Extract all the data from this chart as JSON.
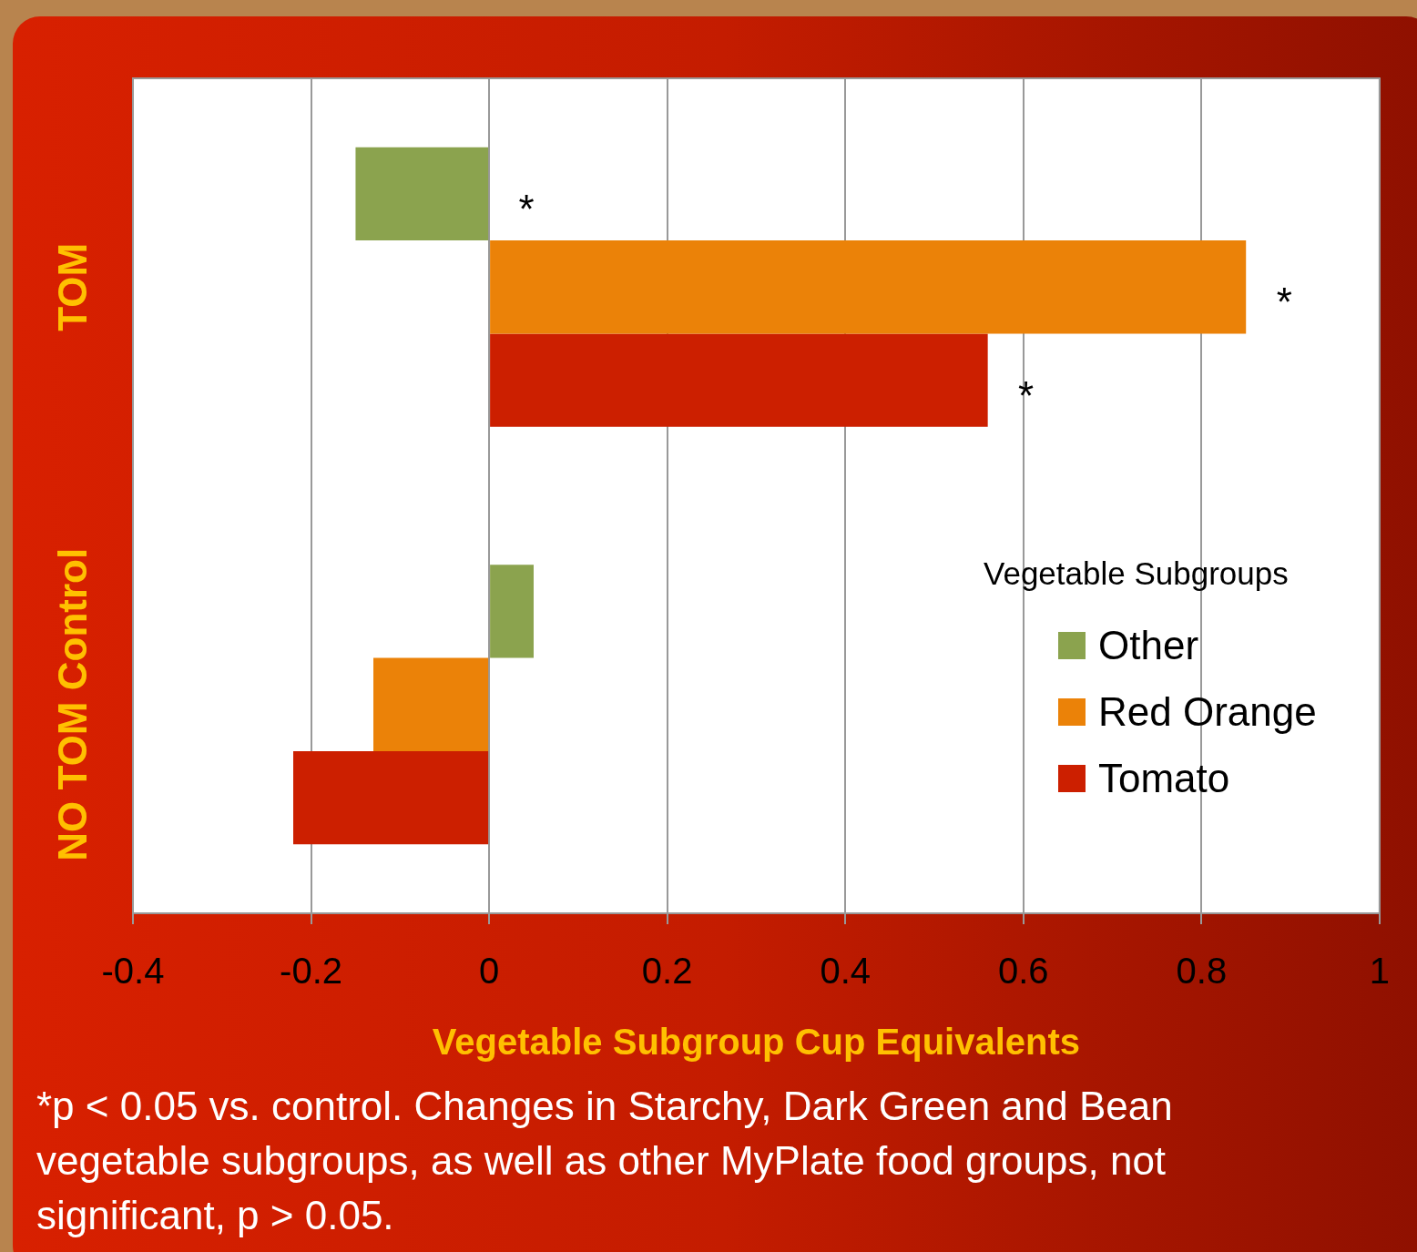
{
  "chart_data": {
    "type": "bar",
    "orientation": "horizontal",
    "xlabel": "Vegetable Subgroup Cup Equivalents",
    "categories": [
      "TOM",
      "NO TOM Control"
    ],
    "series": [
      {
        "name": "Other",
        "color": "#8ba34e",
        "values": [
          -0.15,
          0.05
        ],
        "value_labels": [
          "*",
          null
        ]
      },
      {
        "name": "Red Orange",
        "color": "#eb8208",
        "values": [
          0.85,
          -0.13
        ],
        "value_labels": [
          "*",
          null
        ]
      },
      {
        "name": "Tomato",
        "color": "#cc1f00",
        "values": [
          0.56,
          -0.22
        ],
        "value_labels": [
          "*",
          null
        ]
      }
    ],
    "xlim": [
      -0.4,
      1
    ],
    "xticks": [
      -0.4,
      -0.2,
      0,
      0.2,
      0.4,
      0.6,
      0.8,
      1
    ],
    "grid": "x",
    "legend": "bottom right",
    "legend_title": "Vegetable Subgroups",
    "annotations": [
      "*p < 0.05 vs. control. Changes in Starchy, Dark Green and Bean vegetable subgroups, as well as other MyPlate food groups, not significant, p > 0.05."
    ]
  }
}
